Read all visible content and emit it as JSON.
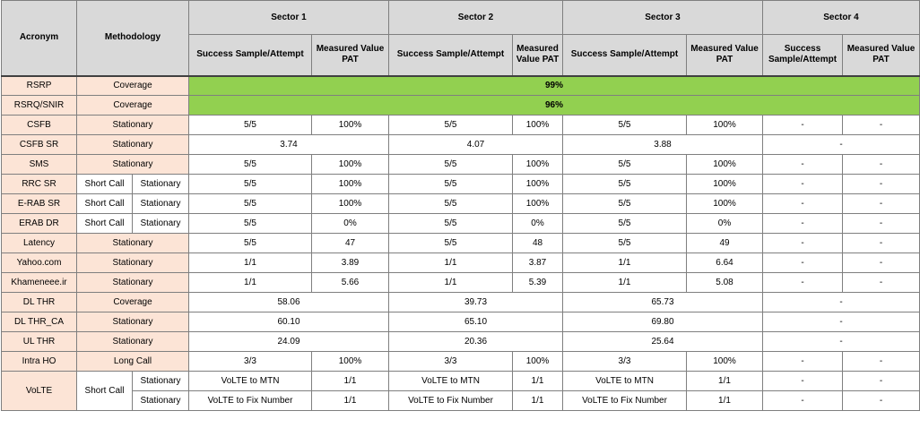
{
  "header": {
    "acronym": "Acronym",
    "methodology": "Methodology",
    "sectors": [
      "Sector 1",
      "Sector 2",
      "Sector 3",
      "Sector 4"
    ],
    "success": "Success Sample/Attempt",
    "success_s4": "Success Sample/Attempt",
    "measured": "Measured Value PAT"
  },
  "rows": {
    "rsrp": {
      "acronym": "RSRP",
      "method": "Coverage",
      "value": "99%"
    },
    "rsrq": {
      "acronym": "RSRQ/SNIR",
      "method": "Coverage",
      "value": "96%"
    },
    "csfb": {
      "acronym": "CSFB",
      "method": "Stationary",
      "s1": [
        "5/5",
        "100%"
      ],
      "s2": [
        "5/5",
        "100%"
      ],
      "s3": [
        "5/5",
        "100%"
      ],
      "s4": [
        "-",
        "-"
      ]
    },
    "csfbsr": {
      "acronym": "CSFB SR",
      "method": "Stationary",
      "s1": "3.74",
      "s2": "4.07",
      "s3": "3.88",
      "s4": "-"
    },
    "sms": {
      "acronym": "SMS",
      "method": "Stationary",
      "s1": [
        "5/5",
        "100%"
      ],
      "s2": [
        "5/5",
        "100%"
      ],
      "s3": [
        "5/5",
        "100%"
      ],
      "s4": [
        "-",
        "-"
      ]
    },
    "rrcsr": {
      "acronym": "RRC SR",
      "method1": "Short Call",
      "method2": "Stationary",
      "s1": [
        "5/5",
        "100%"
      ],
      "s2": [
        "5/5",
        "100%"
      ],
      "s3": [
        "5/5",
        "100%"
      ],
      "s4": [
        "-",
        "-"
      ]
    },
    "erabsr": {
      "acronym": "E-RAB SR",
      "method1": "Short Call",
      "method2": "Stationary",
      "s1": [
        "5/5",
        "100%"
      ],
      "s2": [
        "5/5",
        "100%"
      ],
      "s3": [
        "5/5",
        "100%"
      ],
      "s4": [
        "-",
        "-"
      ]
    },
    "erabdr": {
      "acronym": "ERAB DR",
      "method1": "Short Call",
      "method2": "Stationary",
      "s1": [
        "5/5",
        "0%"
      ],
      "s2": [
        "5/5",
        "0%"
      ],
      "s3": [
        "5/5",
        "0%"
      ],
      "s4": [
        "-",
        "-"
      ]
    },
    "latency": {
      "acronym": "Latency",
      "method": "Stationary",
      "s1": [
        "5/5",
        "47"
      ],
      "s2": [
        "5/5",
        "48"
      ],
      "s3": [
        "5/5",
        "49"
      ],
      "s4": [
        "-",
        "-"
      ]
    },
    "yahoo": {
      "acronym": "Yahoo.com",
      "method": "Stationary",
      "s1": [
        "1/1",
        "3.89"
      ],
      "s2": [
        "1/1",
        "3.87"
      ],
      "s3": [
        "1/1",
        "6.64"
      ],
      "s4": [
        "-",
        "-"
      ]
    },
    "khamenei": {
      "acronym": "Khameneee.ir",
      "method": "Stationary",
      "s1": [
        "1/1",
        "5.66"
      ],
      "s2": [
        "1/1",
        "5.39"
      ],
      "s3": [
        "1/1",
        "5.08"
      ],
      "s4": [
        "-",
        "-"
      ]
    },
    "dlthr": {
      "acronym": "DL THR",
      "method": "Coverage",
      "s1": "58.06",
      "s2": "39.73",
      "s3": "65.73",
      "s4": "-"
    },
    "dlthrca": {
      "acronym": "DL THR_CA",
      "method": "Stationary",
      "s1": "60.10",
      "s2": "65.10",
      "s3": "69.80",
      "s4": "-"
    },
    "ulthr": {
      "acronym": "UL THR",
      "method": "Stationary",
      "s1": "24.09",
      "s2": "20.36",
      "s3": "25.64",
      "s4": "-"
    },
    "intraho": {
      "acronym": "Intra HO",
      "method": "Long Call",
      "s1": [
        "3/3",
        "100%"
      ],
      "s2": [
        "3/3",
        "100%"
      ],
      "s3": [
        "3/3",
        "100%"
      ],
      "s4": [
        "-",
        "-"
      ]
    },
    "volte": {
      "acronym": "VoLTE",
      "method1": "Short Call",
      "a": {
        "method2": "Stationary",
        "s1": [
          "VoLTE to MTN",
          "1/1"
        ],
        "s2": [
          "VoLTE to MTN",
          "1/1"
        ],
        "s3": [
          "VoLTE to MTN",
          "1/1"
        ],
        "s4": [
          "-",
          "-"
        ]
      },
      "b": {
        "method2": "Stationary",
        "s1": [
          "VoLTE to Fix Number",
          "1/1"
        ],
        "s2": [
          "VoLTE to Fix Number",
          "1/1"
        ],
        "s3": [
          "VoLTE to Fix Number",
          "1/1"
        ],
        "s4": [
          "-",
          "-"
        ]
      }
    }
  },
  "colors": {
    "label_bg": "#fce4d6",
    "header_bg": "#d9d9d9",
    "coverage_green": "#92d050",
    "border": "#7f7f7f"
  }
}
